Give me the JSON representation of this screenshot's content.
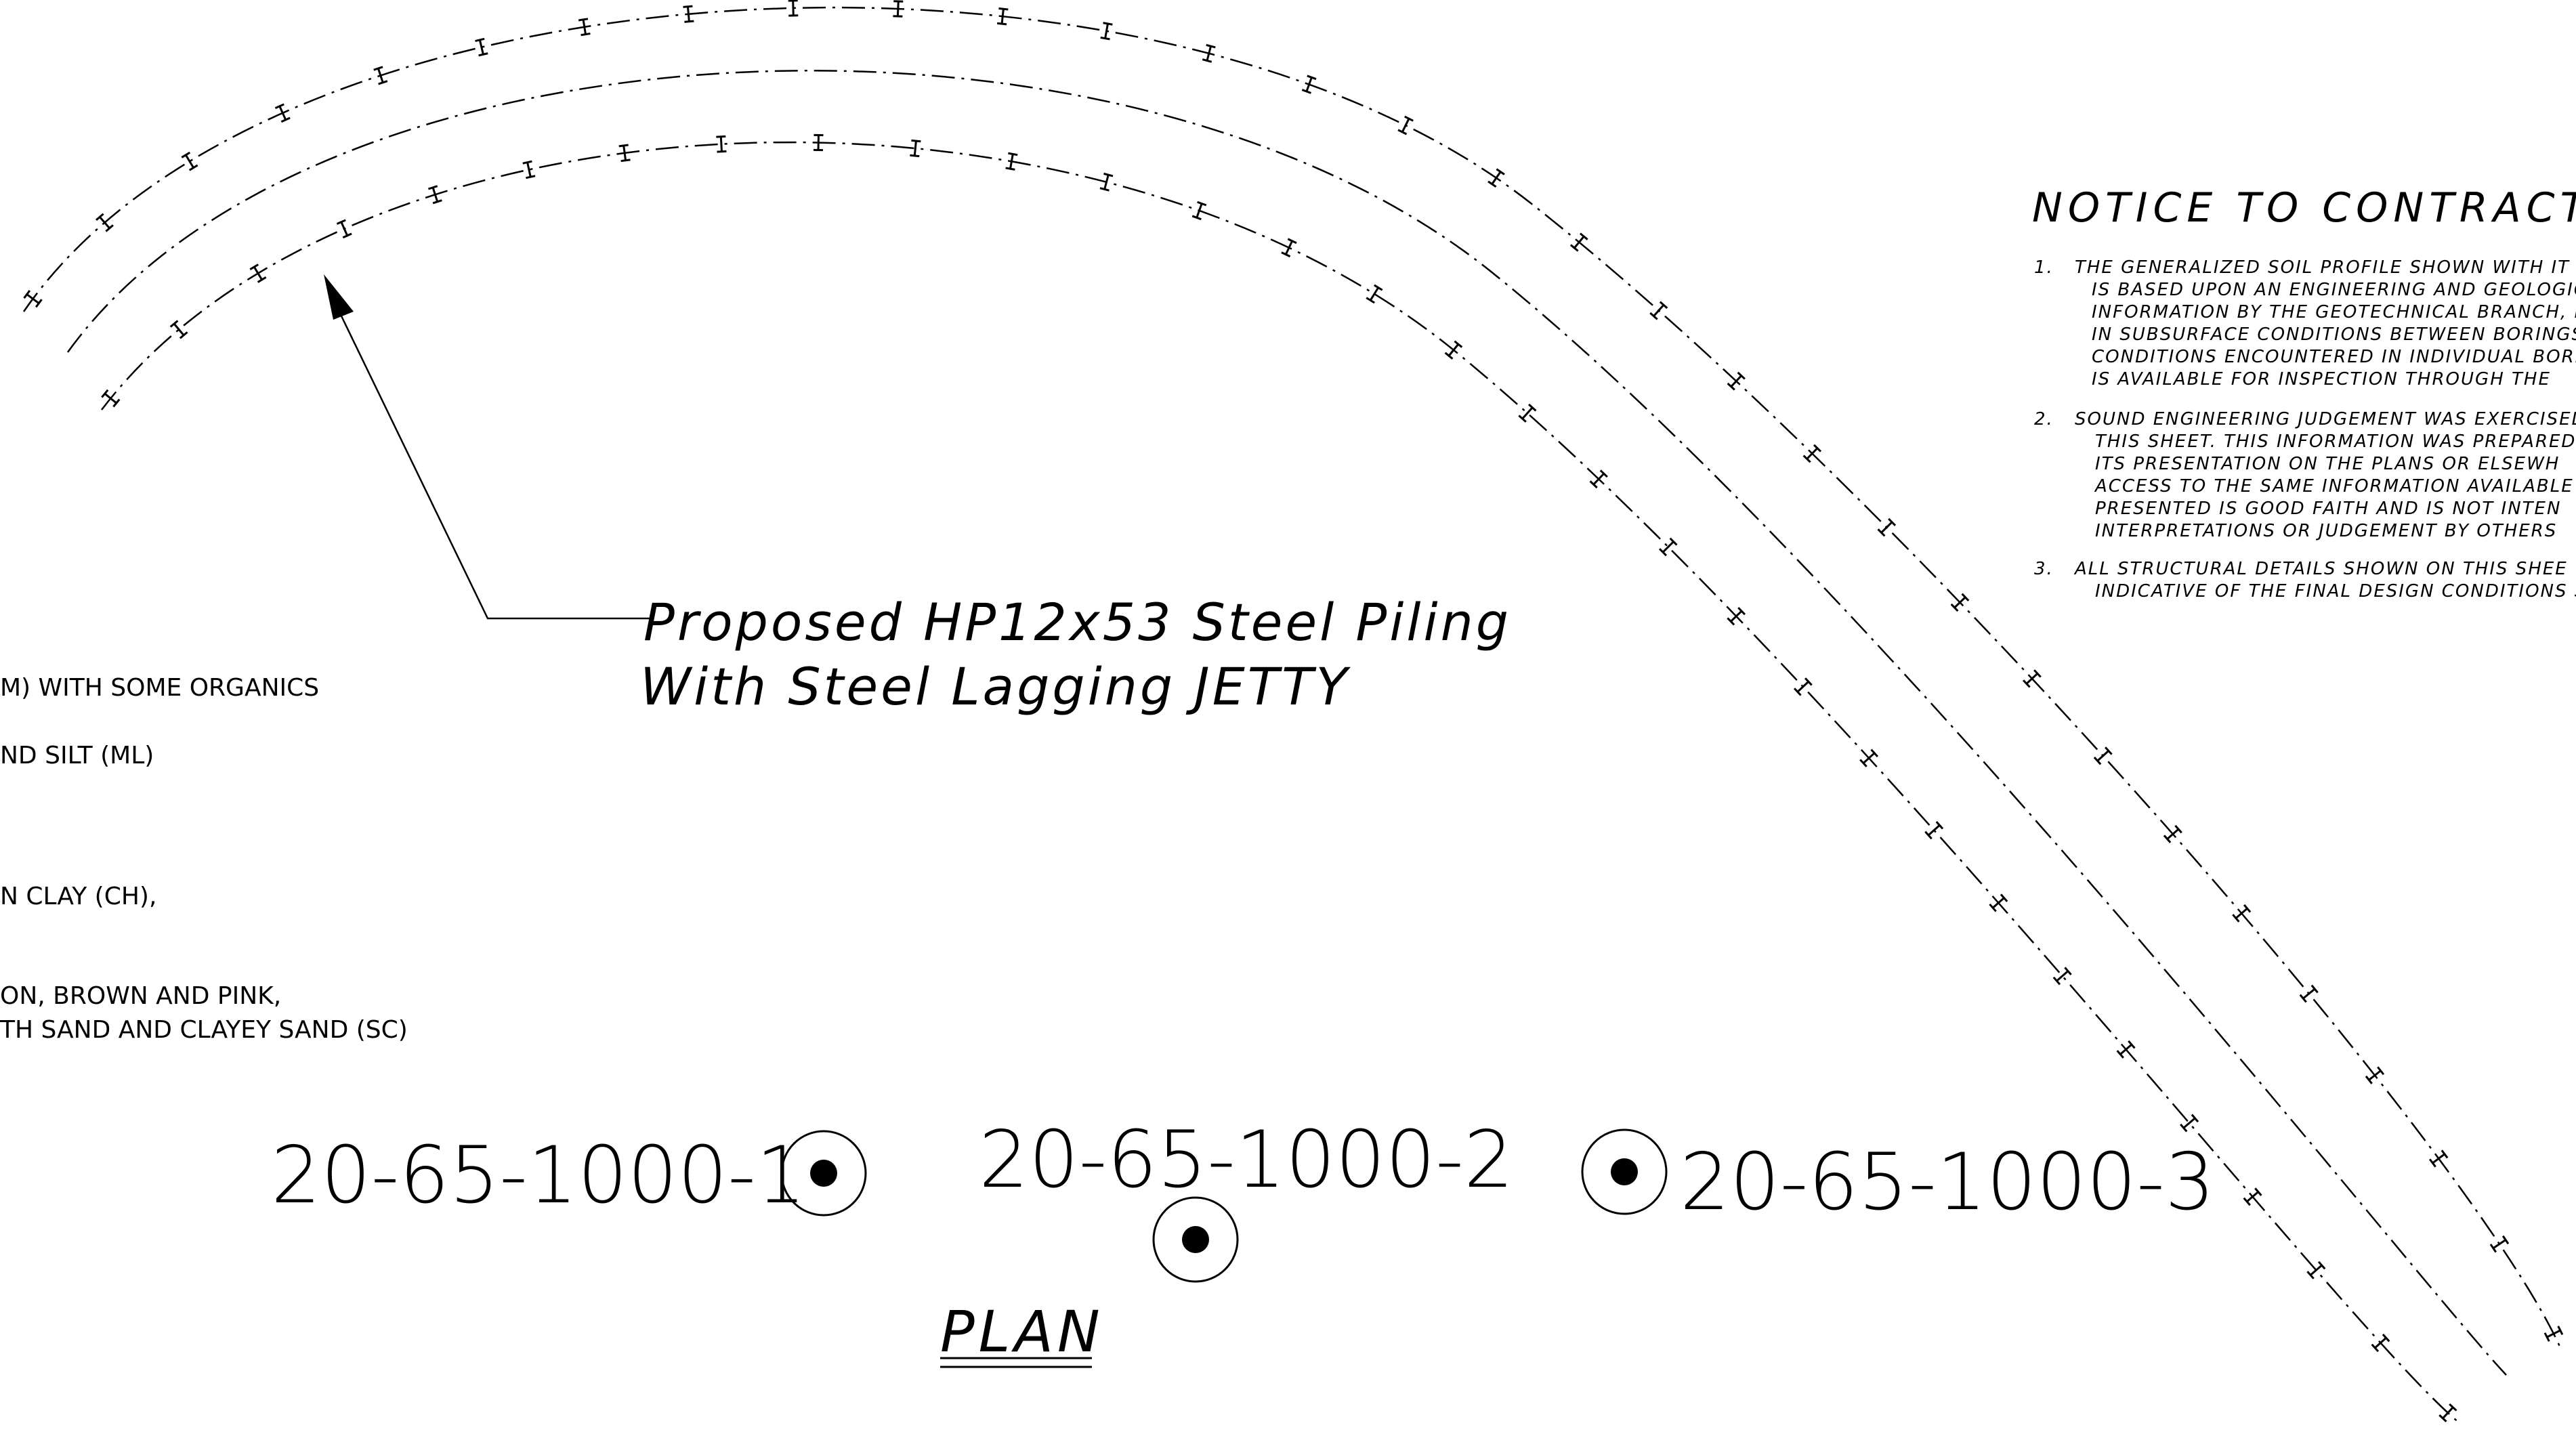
{
  "jetty_label": {
    "line1": "Proposed HP12x53 Steel Piling",
    "line2": "With Steel Lagging JETTY"
  },
  "plan_title": "PLAN",
  "borings": [
    {
      "label": "20-65-1000-1"
    },
    {
      "label": "20-65-1000-2"
    },
    {
      "label": "20-65-1000-3"
    }
  ],
  "soil_legend": [
    "M) WITH SOME ORGANICS",
    "ND SILT (ML)",
    "N CLAY (CH),",
    "ON, BROWN AND PINK,",
    "TH SAND AND CLAYEY SAND (SC)"
  ],
  "notice": {
    "title": "NOTICE TO CONTRACTOR:",
    "notes": [
      {
        "number": "1.",
        "lines": [
          "THE GENERALIZED SOIL PROFILE SHOWN WITH IT",
          "IS BASED UPON AN ENGINEERING AND GEOLOGIC",
          "INFORMATION BY THE GEOTECHNICAL BRANCH, I",
          "IN SUBSURFACE CONDITIONS BETWEEN BORINGS",
          "CONDITIONS ENCOUNTERED IN INDIVIDUAL BORING",
          "IS AVAILABLE FOR INSPECTION THROUGH THE"
        ]
      },
      {
        "number": "2.",
        "lines": [
          "SOUND ENGINEERING JUDGEMENT WAS EXERCISED",
          "THIS SHEET. THIS INFORMATION WAS PREPARED",
          "ITS PRESENTATION ON THE PLANS OR ELSEWH",
          "ACCESS TO THE SAME INFORMATION AVAILABLE",
          "PRESENTED IS GOOD FAITH AND IS NOT INTEN",
          "INTERPRETATIONS OR JUDGEMENT BY OTHERS"
        ]
      },
      {
        "number": "3.",
        "lines": [
          "ALL STRUCTURAL DETAILS SHOWN ON THIS SHEE",
          "INDICATIVE OF THE FINAL DESIGN CONDITIONS S"
        ]
      }
    ]
  },
  "colors": {
    "line": "#000000",
    "background": "#ffffff"
  }
}
